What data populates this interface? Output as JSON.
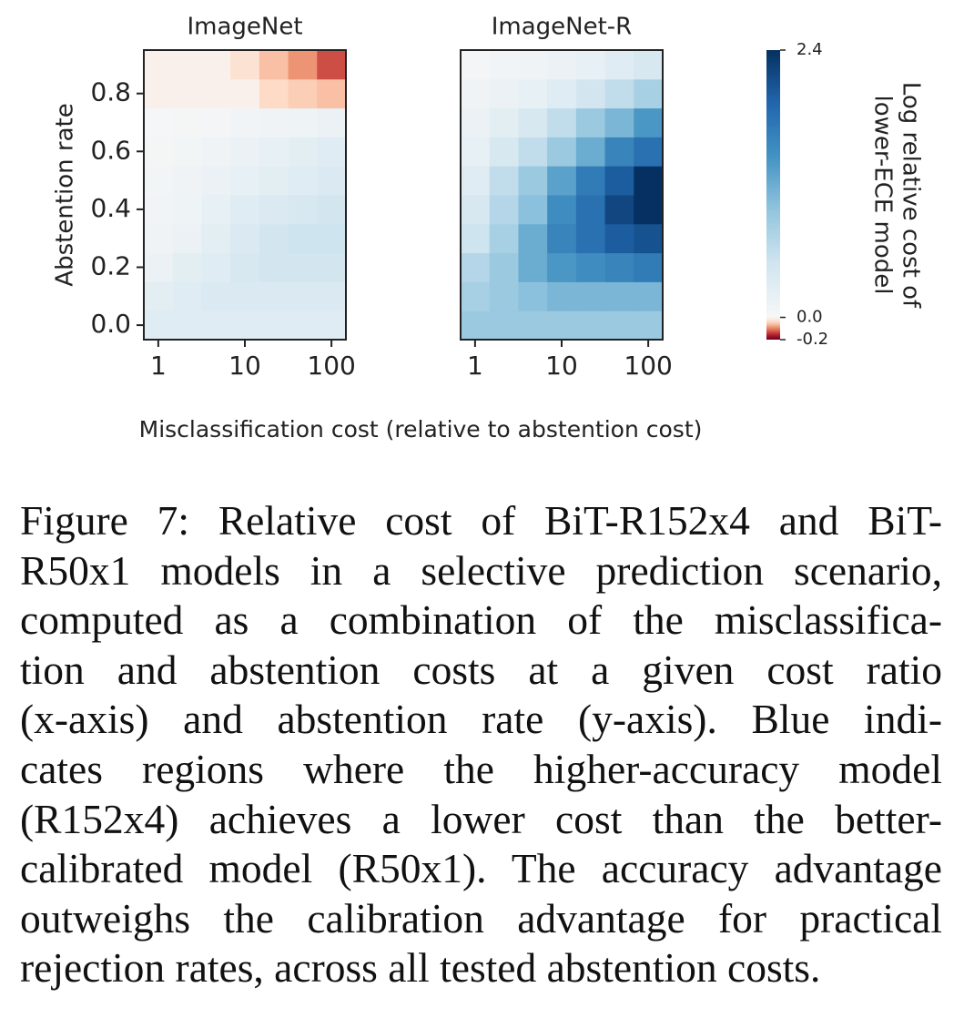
{
  "chart_data": [
    {
      "type": "heatmap",
      "title": "ImageNet",
      "ylabel": "Abstention rate",
      "x": [
        1,
        2.154,
        4.642,
        10,
        21.54,
        46.42,
        100
      ],
      "y": [
        0,
        0.1,
        0.2,
        0.3,
        0.4,
        0.5,
        0.6,
        0.7,
        0.8,
        0.9
      ],
      "z": [
        [
          0.3,
          0.3,
          0.3,
          0.3,
          0.3,
          0.3,
          0.3
        ],
        [
          0.25,
          0.3,
          0.35,
          0.35,
          0.35,
          0.35,
          0.35
        ],
        [
          0.15,
          0.25,
          0.3,
          0.4,
          0.45,
          0.45,
          0.45
        ],
        [
          0.1,
          0.15,
          0.25,
          0.35,
          0.45,
          0.5,
          0.5
        ],
        [
          0.08,
          0.12,
          0.2,
          0.3,
          0.35,
          0.4,
          0.45
        ],
        [
          0.06,
          0.1,
          0.15,
          0.2,
          0.25,
          0.3,
          0.35
        ],
        [
          0.04,
          0.06,
          0.1,
          0.15,
          0.2,
          0.25,
          0.3
        ],
        [
          0.03,
          0.04,
          0.05,
          0.07,
          0.1,
          0.12,
          0.15
        ],
        [
          -0.01,
          -0.01,
          -0.01,
          -0.01,
          -0.04,
          -0.05,
          -0.06
        ],
        [
          -0.01,
          -0.01,
          -0.01,
          -0.03,
          -0.06,
          -0.09,
          -0.13
        ]
      ],
      "xscale": "log",
      "xlim": [
        0.681,
        146.8
      ],
      "xticks": [
        1,
        10,
        100
      ],
      "ylim": [
        -0.05,
        0.95
      ],
      "yticks": [
        {
          "value": 0,
          "label": "0.0"
        },
        {
          "value": 0.2,
          "label": "0.2"
        },
        {
          "value": 0.4,
          "label": "0.4"
        },
        {
          "value": 0.6,
          "label": "0.6"
        },
        {
          "value": 0.8,
          "label": "0.8"
        }
      ]
    },
    {
      "type": "heatmap",
      "title": "ImageNet-R",
      "x": [
        1,
        2.154,
        4.642,
        10,
        21.54,
        46.42,
        100
      ],
      "y": [
        0,
        0.1,
        0.2,
        0.3,
        0.4,
        0.5,
        0.6,
        0.7,
        0.8,
        0.9
      ],
      "z": [
        [
          0.9,
          0.9,
          0.9,
          0.9,
          0.9,
          0.9,
          0.9
        ],
        [
          0.8,
          0.9,
          1.0,
          1.1,
          1.1,
          1.1,
          1.1
        ],
        [
          0.7,
          0.9,
          1.2,
          1.4,
          1.5,
          1.6,
          1.7
        ],
        [
          0.5,
          0.8,
          1.2,
          1.6,
          1.8,
          2.0,
          2.1
        ],
        [
          0.4,
          0.7,
          1.0,
          1.5,
          1.8,
          2.2,
          2.4
        ],
        [
          0.3,
          0.6,
          0.9,
          1.3,
          1.7,
          2.0,
          2.4
        ],
        [
          0.2,
          0.4,
          0.6,
          0.9,
          1.2,
          1.6,
          1.8
        ],
        [
          0.15,
          0.25,
          0.4,
          0.6,
          0.9,
          1.1,
          1.4
        ],
        [
          0.1,
          0.15,
          0.2,
          0.3,
          0.45,
          0.6,
          0.8
        ],
        [
          0.05,
          0.07,
          0.1,
          0.15,
          0.2,
          0.3,
          0.4
        ]
      ],
      "xscale": "log",
      "xlim": [
        0.681,
        146.8
      ],
      "xticks": [
        1,
        10,
        100
      ],
      "ylim": [
        -0.05,
        0.95
      ]
    },
    {
      "type": "colorbar",
      "colormap": "RdBu",
      "norm": "twoslope",
      "label": [
        "Log relative cost of",
        "lower-ECE model"
      ],
      "clim": [
        -0.2,
        2.4
      ],
      "ticks": [
        {
          "value": 2.4,
          "label": "2.4"
        },
        {
          "value": 0,
          "label": "0.0"
        },
        {
          "value": -0.2,
          "label": "-0.2"
        }
      ]
    }
  ],
  "xlabel": "Misclassification cost (relative to abstention cost)",
  "caption": [
    "Figure 7: Relative cost of BiT-R152x4 and BiT-",
    "R50x1 models in a selective prediction scenario,",
    "computed as a combination of the misclassifica-",
    "tion and abstention costs at a given cost ratio",
    "(x-axis) and abstention rate (y-axis). Blue indi-",
    "cates regions where the higher-accuracy model",
    "(R152x4) achieves a lower cost than the better-",
    "calibrated model (R50x1). The accuracy advantage",
    "outweighs the calibration advantage for practical",
    "rejection rates, across all tested abstention costs."
  ]
}
